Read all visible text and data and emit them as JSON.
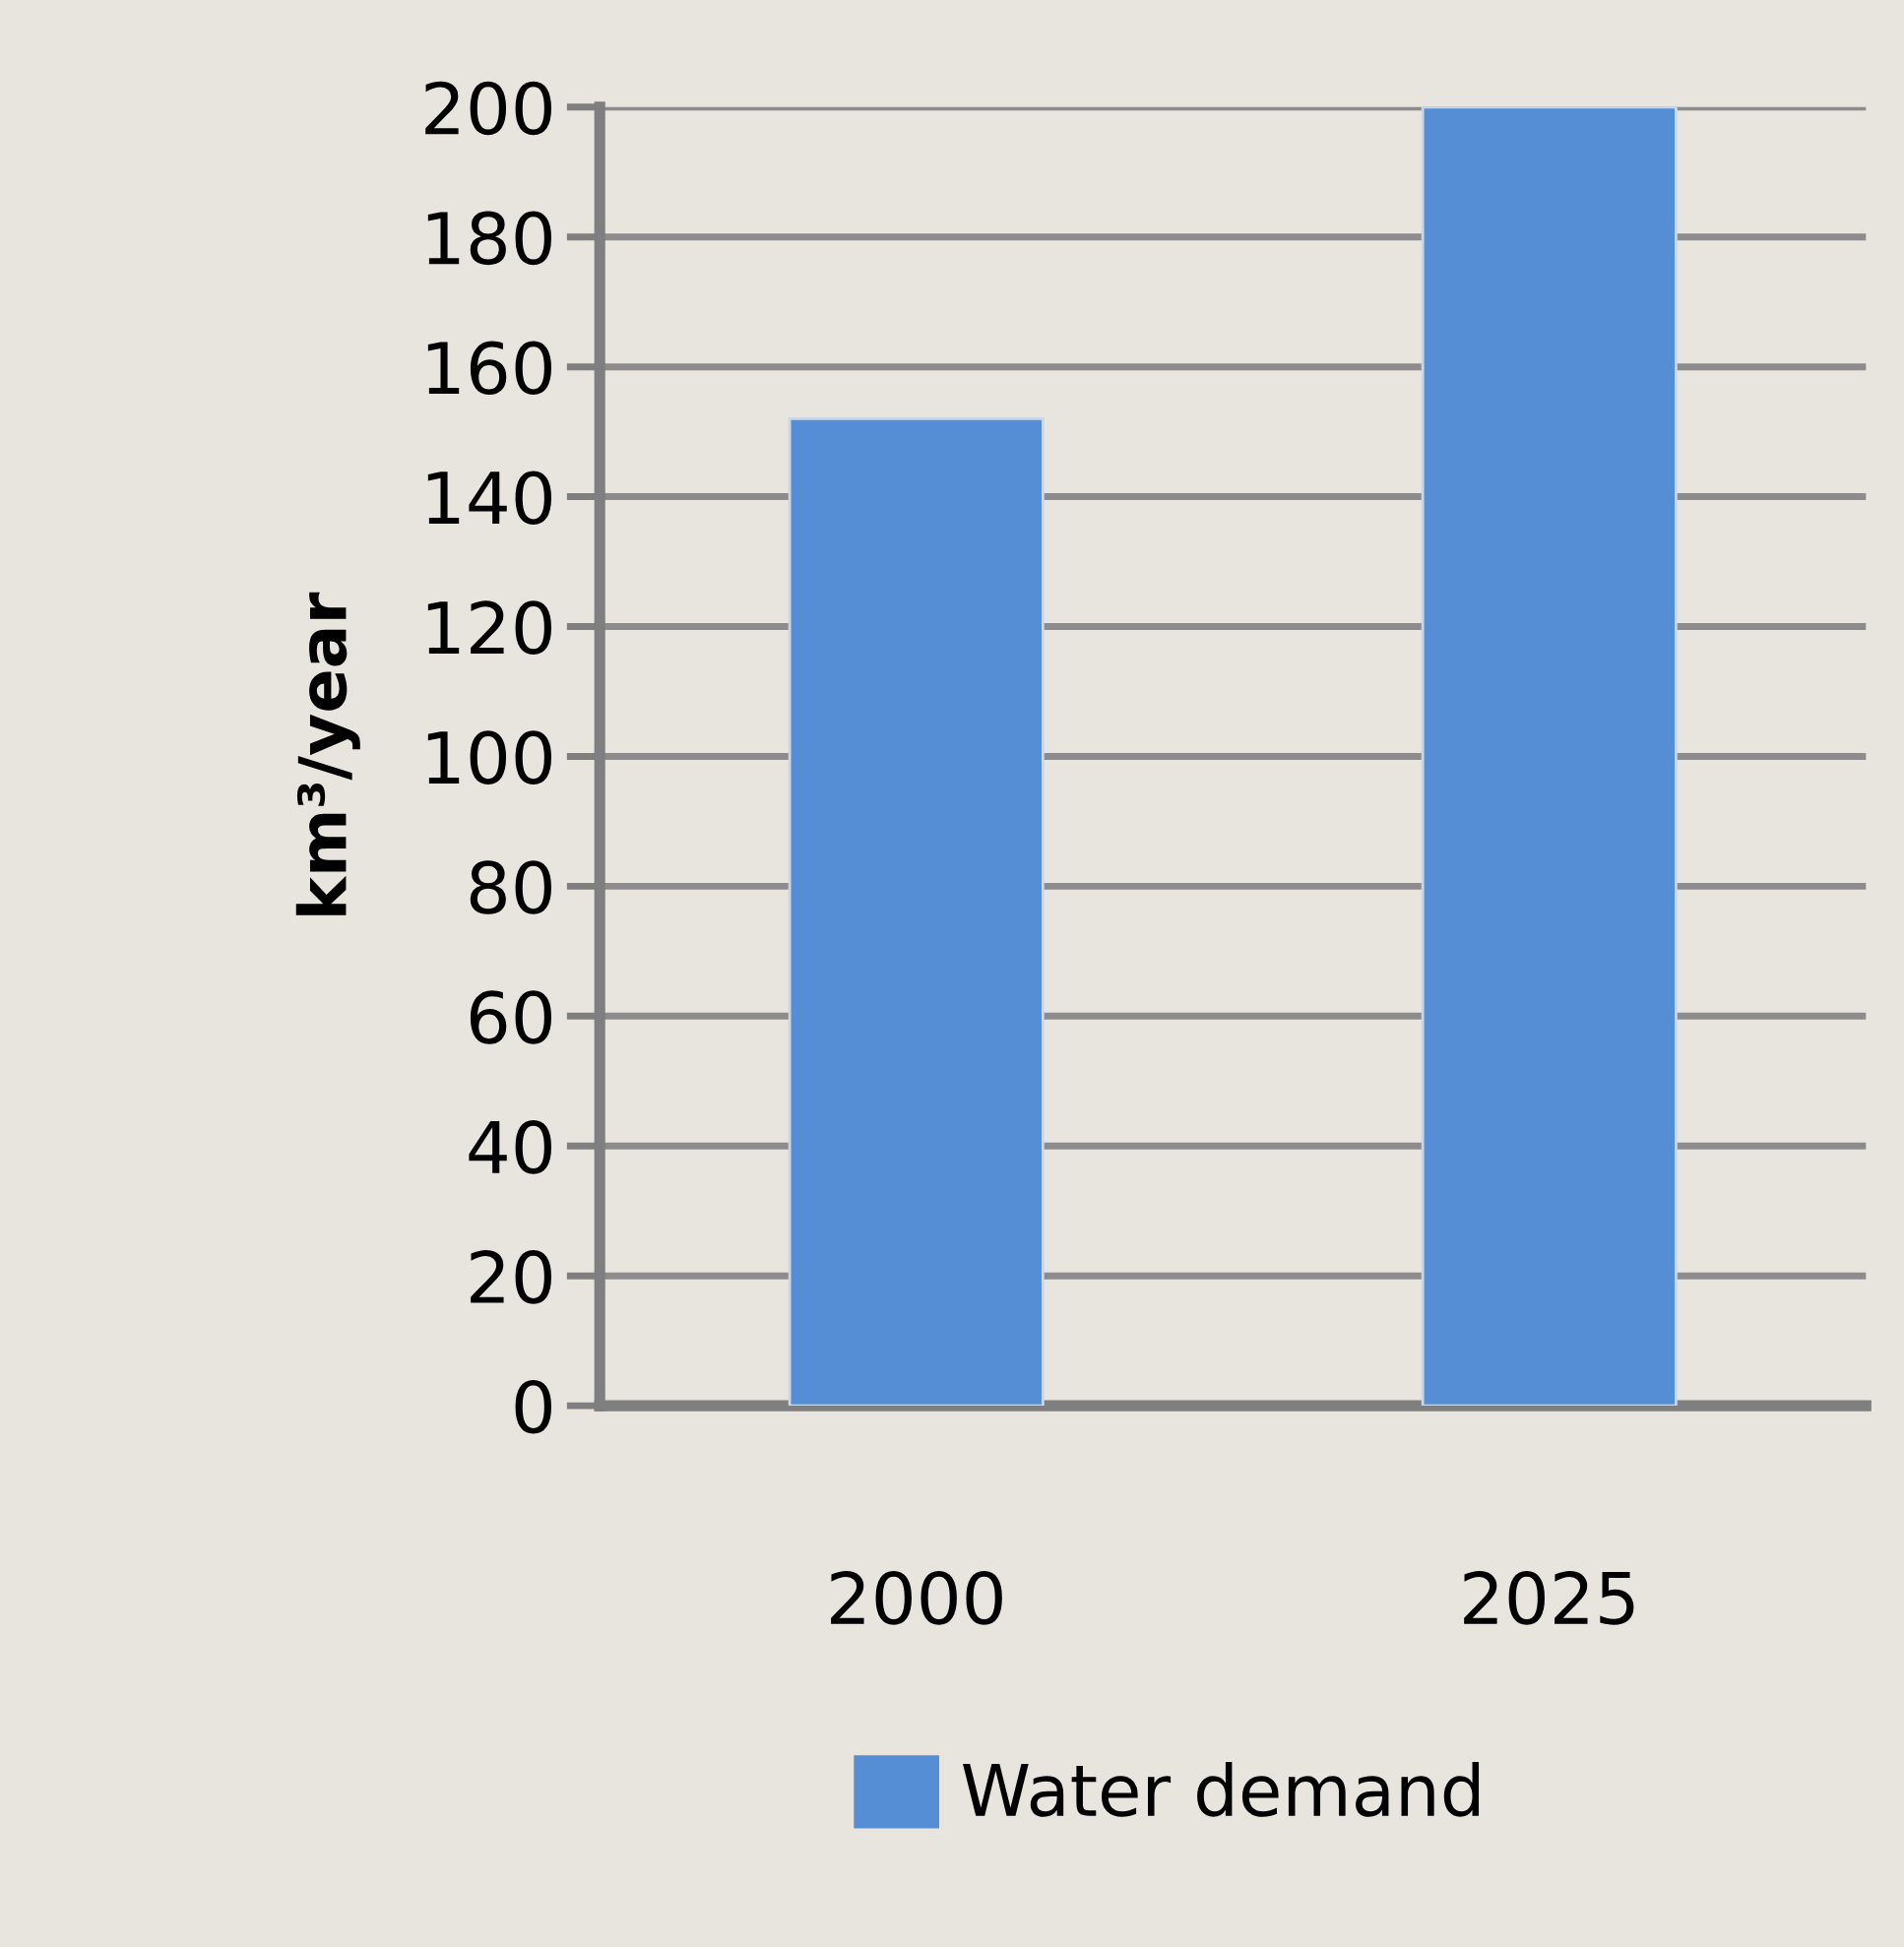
{
  "chart_data": {
    "type": "bar",
    "ylabel": "km³/year",
    "categories": [
      "2000",
      "2025"
    ],
    "series": [
      {
        "name": "Water demand",
        "color": "#558ed5",
        "values": [
          152,
          200
        ]
      }
    ],
    "ylim": [
      0,
      200
    ],
    "yticks": [
      0,
      20,
      40,
      60,
      80,
      100,
      120,
      140,
      160,
      180,
      200
    ],
    "grid": "y",
    "legend": "bottom"
  }
}
